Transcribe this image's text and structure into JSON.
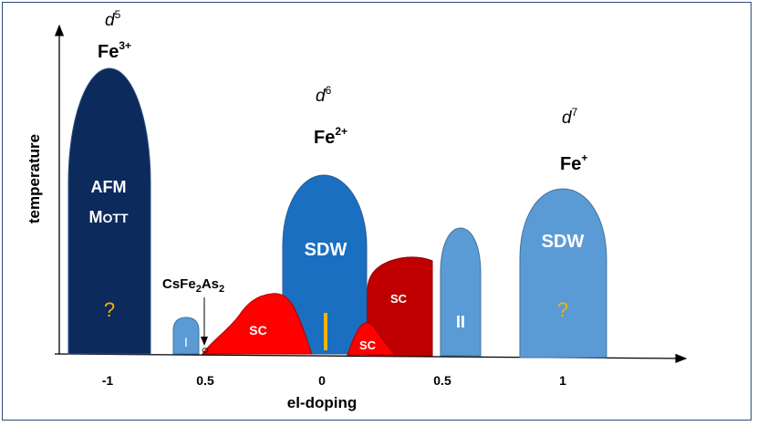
{
  "colors": {
    "afm": "#0c2a5c",
    "sdw_center": "#1b6fc0",
    "light_blue": "#5b9bd5",
    "sc_bright": "#ff0000",
    "sc_dark": "#c00000",
    "question": "#f0b400",
    "text_light": "#ffffff",
    "text_dark": "#000000",
    "frame": "#2f4a7a"
  },
  "axes": {
    "y_label": "temperature",
    "x_label": "el-doping",
    "x_ticks": [
      "-1",
      "0.5",
      "0",
      "0.5",
      "1"
    ]
  },
  "configs": [
    {
      "d": "d",
      "d_sup": "5",
      "ion": "Fe",
      "ion_sup": "3+"
    },
    {
      "d": "d",
      "d_sup": "6",
      "ion": "Fe",
      "ion_sup": "2+"
    },
    {
      "d": "d",
      "d_sup": "7",
      "ion": "Fe",
      "ion_sup": "+"
    }
  ],
  "phases": {
    "afm_line1": "AFM",
    "afm_line2_big": "M",
    "afm_line2_small": "OTT",
    "sdw": "SDW",
    "sdw_right": "SDW",
    "sc": "SC",
    "roman_one": "I",
    "roman_two": "II",
    "question": "?"
  },
  "compound": {
    "base": "CsFe",
    "sub1": "2",
    "mid": "As",
    "sub2": "2"
  }
}
